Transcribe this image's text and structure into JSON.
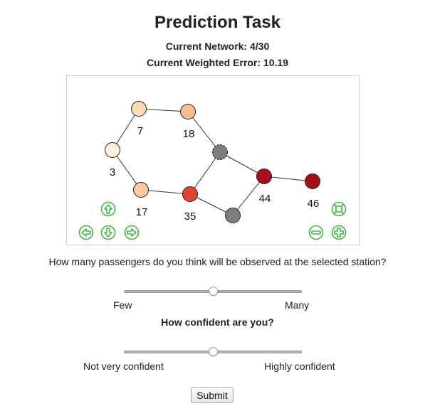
{
  "header": {
    "title": "Prediction Task",
    "current_network": "Current Network: 4/30",
    "weighted_error": "Current Weighted Error: 10.19"
  },
  "network": {
    "nodes": [
      {
        "id": "n7",
        "label": "7",
        "color": "#fddbb6"
      },
      {
        "id": "n18",
        "label": "18",
        "color": "#fbbf8e"
      },
      {
        "id": "n3",
        "label": "3",
        "color": "#fff0db"
      },
      {
        "id": "n17",
        "label": "17",
        "color": "#fdc9a0"
      },
      {
        "id": "selected",
        "label": "",
        "color": "#7d7d7d",
        "selected": true
      },
      {
        "id": "n35",
        "label": "35",
        "color": "#e34433"
      },
      {
        "id": "n44",
        "label": "44",
        "color": "#a8101e"
      },
      {
        "id": "n46",
        "label": "46",
        "color": "#a50f15"
      },
      {
        "id": "unknown",
        "label": "",
        "color": "#7d7d7d"
      }
    ],
    "edges": [
      [
        "n7",
        "n18"
      ],
      [
        "n7",
        "n3"
      ],
      [
        "n3",
        "n17"
      ],
      [
        "n17",
        "n35"
      ],
      [
        "n18",
        "selected"
      ],
      [
        "selected",
        "n35"
      ],
      [
        "selected",
        "n44"
      ],
      [
        "n44",
        "n46"
      ],
      [
        "n44",
        "unknown"
      ],
      [
        "n35",
        "unknown"
      ]
    ],
    "controls": {
      "pan_up": "arrow-up-icon",
      "pan_left": "arrow-left-icon",
      "pan_down": "arrow-down-icon",
      "pan_right": "arrow-right-icon",
      "fit": "fit-to-screen-icon",
      "zoom_out": "zoom-out-icon",
      "zoom_in": "zoom-in-icon",
      "control_color": "#3fb83f"
    }
  },
  "question1": {
    "text": "How many passengers do you think will be observed at the selected station?",
    "min_label": "Few",
    "max_label": "Many",
    "value": 0.5
  },
  "question2": {
    "text": "How confident are you?",
    "min_label": "Not very confident",
    "max_label": "Highly confident",
    "value": 0.5
  },
  "submit_label": "Submit"
}
